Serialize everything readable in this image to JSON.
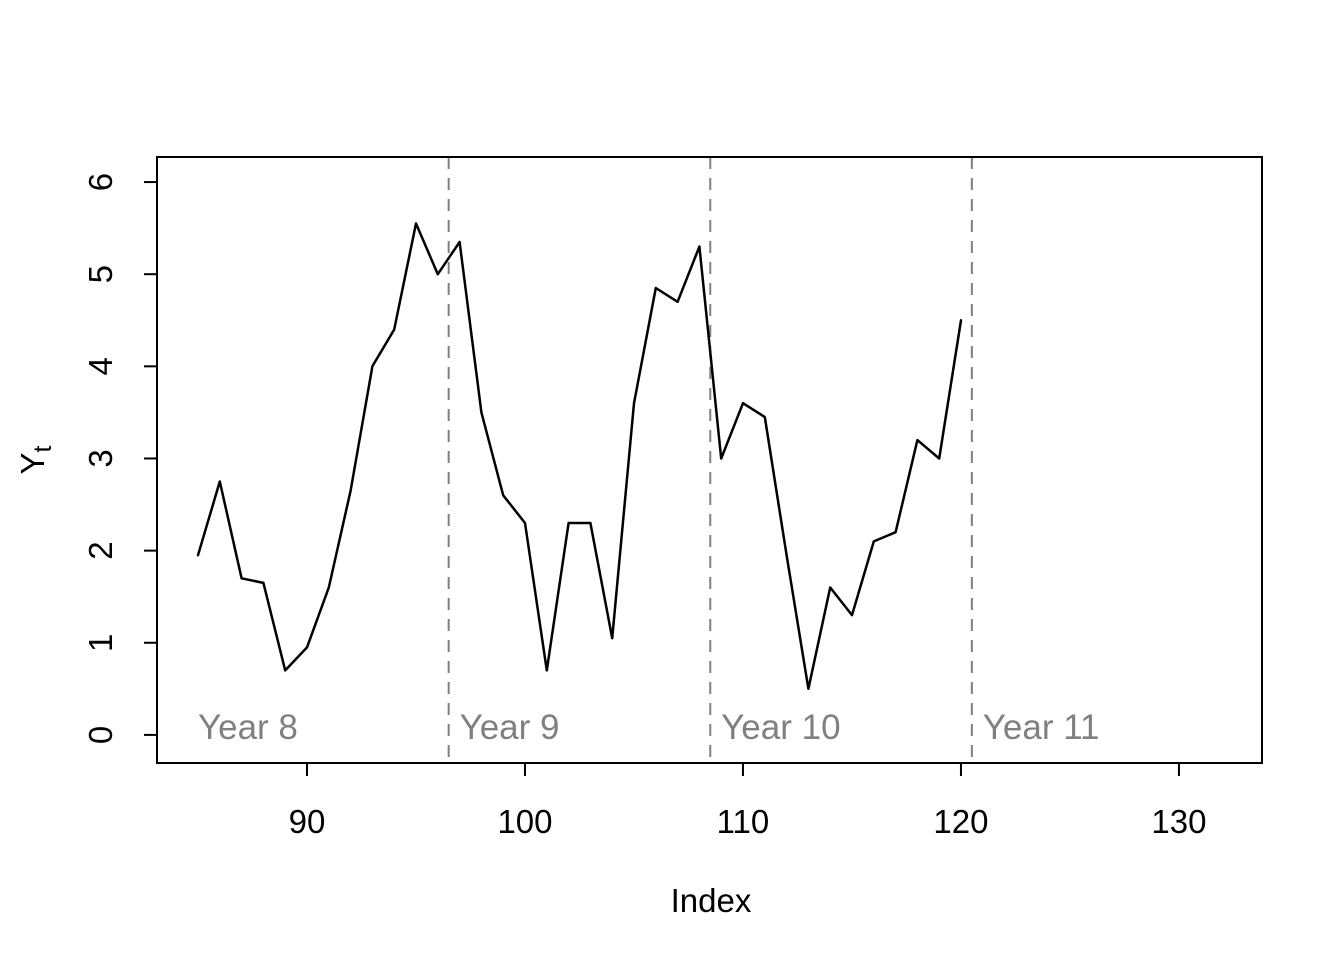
{
  "figure": {
    "background": "#ffffff"
  },
  "chart_data": {
    "type": "line",
    "title": "",
    "xlabel": "Index",
    "ylabel": "Y_t",
    "ylabel_base": "Y",
    "ylabel_sub": "t",
    "x": [
      85,
      86,
      87,
      88,
      89,
      90,
      91,
      92,
      93,
      94,
      95,
      96,
      97,
      98,
      99,
      100,
      101,
      102,
      103,
      104,
      105,
      106,
      107,
      108,
      109,
      110,
      111,
      112,
      113,
      114,
      115,
      116,
      117,
      118,
      119,
      120
    ],
    "values": [
      1.95,
      2.75,
      1.7,
      1.65,
      0.7,
      0.95,
      1.6,
      2.65,
      4.0,
      4.4,
      5.55,
      5.0,
      5.35,
      3.5,
      2.6,
      2.3,
      0.7,
      2.3,
      2.3,
      1.05,
      3.6,
      4.85,
      4.7,
      5.3,
      3.0,
      3.6,
      3.45,
      1.95,
      0.5,
      1.6,
      1.3,
      2.1,
      2.2,
      3.2,
      3.0,
      4.5
    ],
    "x_ticks": [
      90,
      100,
      110,
      120,
      130
    ],
    "y_ticks": [
      0,
      1,
      2,
      3,
      4,
      5,
      6
    ],
    "xlim": [
      83.12,
      133.81
    ],
    "ylim": [
      -0.305,
      6.272
    ],
    "grid": false,
    "legend": "none",
    "line_color": "#000000",
    "reference_lines": {
      "style": "dashed",
      "color": "#808080",
      "x_positions": [
        96.5,
        108.5,
        120.5
      ]
    },
    "annotations": [
      {
        "text": "Year 8",
        "x": 85,
        "y": 0
      },
      {
        "text": "Year 9",
        "x": 97,
        "y": 0
      },
      {
        "text": "Year 10",
        "x": 109,
        "y": 0
      },
      {
        "text": "Year 11",
        "x": 121,
        "y": 0
      }
    ],
    "annotation_color": "#808080"
  }
}
